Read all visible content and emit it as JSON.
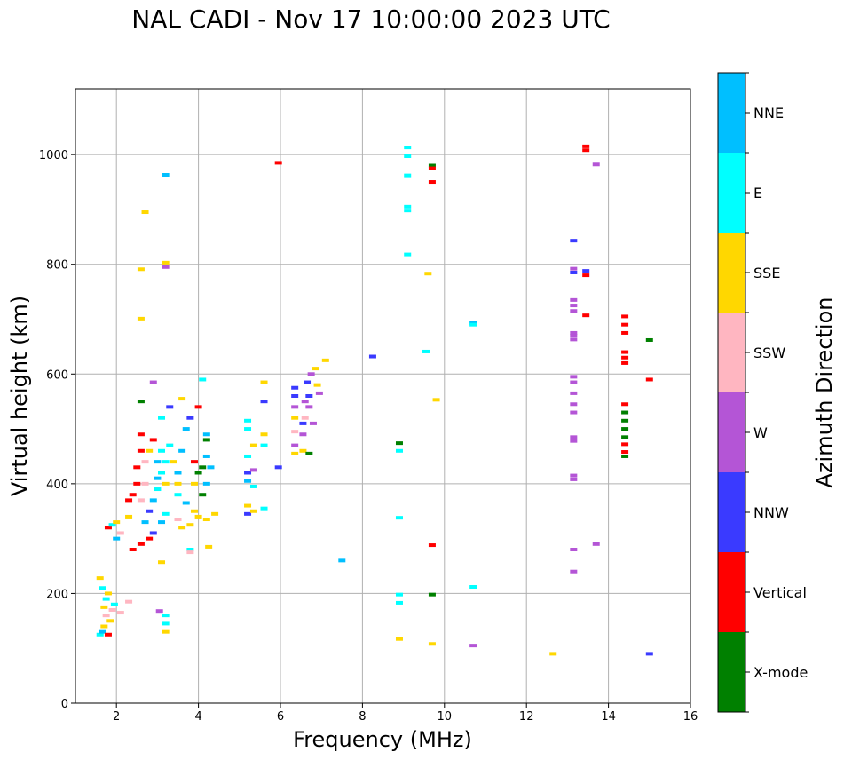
{
  "chart_data": {
    "type": "scatter",
    "title": "NAL CADI - Nov 17 10:00:00 2023 UTC",
    "xlabel": "Frequency (MHz)",
    "ylabel": "Virtual height (km)",
    "xlim": [
      1,
      16
    ],
    "ylim": [
      0,
      1120
    ],
    "xticks": [
      2,
      4,
      6,
      8,
      10,
      12,
      14,
      16
    ],
    "yticks": [
      0,
      200,
      400,
      600,
      800,
      1000
    ],
    "grid": true,
    "colorbar": {
      "label": "Azimuth Direction",
      "categories": [
        {
          "name": "X-mode",
          "color": "#008000"
        },
        {
          "name": "Vertical",
          "color": "#ff0000"
        },
        {
          "name": "NNW",
          "color": "#3a3aff"
        },
        {
          "name": "W",
          "color": "#b455d6"
        },
        {
          "name": "SSW",
          "color": "#ffb6c1"
        },
        {
          "name": "SSE",
          "color": "#ffd700"
        },
        {
          "name": "E",
          "color": "#00ffff"
        },
        {
          "name": "NNE",
          "color": "#00bfff"
        }
      ]
    },
    "points": [
      {
        "x": 1.6,
        "y": 125,
        "c": "E"
      },
      {
        "x": 1.65,
        "y": 130,
        "c": "NNE"
      },
      {
        "x": 1.7,
        "y": 140,
        "c": "SSE"
      },
      {
        "x": 1.75,
        "y": 160,
        "c": "SSW"
      },
      {
        "x": 1.7,
        "y": 175,
        "c": "SSE"
      },
      {
        "x": 1.75,
        "y": 190,
        "c": "E"
      },
      {
        "x": 1.8,
        "y": 200,
        "c": "SSE"
      },
      {
        "x": 1.65,
        "y": 210,
        "c": "E"
      },
      {
        "x": 1.8,
        "y": 125,
        "c": "Vertical"
      },
      {
        "x": 1.85,
        "y": 150,
        "c": "SSE"
      },
      {
        "x": 1.9,
        "y": 170,
        "c": "SSW"
      },
      {
        "x": 2.1,
        "y": 165,
        "c": "SSW"
      },
      {
        "x": 2.3,
        "y": 185,
        "c": "SSW"
      },
      {
        "x": 1.6,
        "y": 228,
        "c": "SSE"
      },
      {
        "x": 1.95,
        "y": 180,
        "c": "E"
      },
      {
        "x": 1.8,
        "y": 320,
        "c": "Vertical"
      },
      {
        "x": 1.9,
        "y": 325,
        "c": "E"
      },
      {
        "x": 2.0,
        "y": 330,
        "c": "SSE"
      },
      {
        "x": 2.0,
        "y": 300,
        "c": "NNE"
      },
      {
        "x": 2.1,
        "y": 310,
        "c": "SSW"
      },
      {
        "x": 2.3,
        "y": 340,
        "c": "SSE"
      },
      {
        "x": 2.3,
        "y": 370,
        "c": "Vertical"
      },
      {
        "x": 2.4,
        "y": 380,
        "c": "Vertical"
      },
      {
        "x": 2.5,
        "y": 400,
        "c": "Vertical"
      },
      {
        "x": 2.5,
        "y": 430,
        "c": "Vertical"
      },
      {
        "x": 2.6,
        "y": 460,
        "c": "Vertical"
      },
      {
        "x": 2.6,
        "y": 490,
        "c": "Vertical"
      },
      {
        "x": 2.4,
        "y": 280,
        "c": "Vertical"
      },
      {
        "x": 2.6,
        "y": 290,
        "c": "Vertical"
      },
      {
        "x": 2.8,
        "y": 300,
        "c": "Vertical"
      },
      {
        "x": 2.9,
        "y": 310,
        "c": "NNW"
      },
      {
        "x": 2.7,
        "y": 330,
        "c": "NNE"
      },
      {
        "x": 2.8,
        "y": 350,
        "c": "NNW"
      },
      {
        "x": 2.9,
        "y": 370,
        "c": "NNE"
      },
      {
        "x": 3.0,
        "y": 390,
        "c": "E"
      },
      {
        "x": 3.0,
        "y": 410,
        "c": "NNE"
      },
      {
        "x": 3.1,
        "y": 420,
        "c": "E"
      },
      {
        "x": 3.2,
        "y": 400,
        "c": "SSE"
      },
      {
        "x": 3.1,
        "y": 330,
        "c": "NNE"
      },
      {
        "x": 3.2,
        "y": 345,
        "c": "E"
      },
      {
        "x": 2.6,
        "y": 370,
        "c": "SSW"
      },
      {
        "x": 2.7,
        "y": 400,
        "c": "SSW"
      },
      {
        "x": 2.7,
        "y": 440,
        "c": "SSW"
      },
      {
        "x": 2.8,
        "y": 460,
        "c": "SSE"
      },
      {
        "x": 2.9,
        "y": 480,
        "c": "Vertical"
      },
      {
        "x": 3.0,
        "y": 440,
        "c": "NNE"
      },
      {
        "x": 3.1,
        "y": 460,
        "c": "E"
      },
      {
        "x": 3.3,
        "y": 470,
        "c": "E"
      },
      {
        "x": 3.4,
        "y": 440,
        "c": "SSE"
      },
      {
        "x": 3.5,
        "y": 420,
        "c": "NNE"
      },
      {
        "x": 3.5,
        "y": 380,
        "c": "E"
      },
      {
        "x": 3.6,
        "y": 460,
        "c": "NNE"
      },
      {
        "x": 3.7,
        "y": 500,
        "c": "NNE"
      },
      {
        "x": 3.8,
        "y": 520,
        "c": "NNW"
      },
      {
        "x": 3.9,
        "y": 440,
        "c": "Vertical"
      },
      {
        "x": 3.9,
        "y": 400,
        "c": "SSE"
      },
      {
        "x": 4.0,
        "y": 420,
        "c": "X-mode"
      },
      {
        "x": 4.1,
        "y": 430,
        "c": "X-mode"
      },
      {
        "x": 4.2,
        "y": 400,
        "c": "NNE"
      },
      {
        "x": 4.2,
        "y": 450,
        "c": "NNE"
      },
      {
        "x": 4.2,
        "y": 490,
        "c": "NNE"
      },
      {
        "x": 4.0,
        "y": 540,
        "c": "Vertical"
      },
      {
        "x": 4.2,
        "y": 480,
        "c": "X-mode"
      },
      {
        "x": 4.1,
        "y": 380,
        "c": "X-mode"
      },
      {
        "x": 4.3,
        "y": 430,
        "c": "NNE"
      },
      {
        "x": 4.0,
        "y": 340,
        "c": "SSE"
      },
      {
        "x": 4.2,
        "y": 335,
        "c": "SSE"
      },
      {
        "x": 4.4,
        "y": 345,
        "c": "SSE"
      },
      {
        "x": 3.6,
        "y": 320,
        "c": "SSE"
      },
      {
        "x": 3.8,
        "y": 325,
        "c": "SSE"
      },
      {
        "x": 3.5,
        "y": 335,
        "c": "SSW"
      },
      {
        "x": 3.9,
        "y": 350,
        "c": "SSE"
      },
      {
        "x": 3.7,
        "y": 365,
        "c": "NNE"
      },
      {
        "x": 3.5,
        "y": 400,
        "c": "SSE"
      },
      {
        "x": 3.2,
        "y": 440,
        "c": "E"
      },
      {
        "x": 3.3,
        "y": 540,
        "c": "NNW"
      },
      {
        "x": 3.6,
        "y": 555,
        "c": "SSE"
      },
      {
        "x": 4.1,
        "y": 590,
        "c": "E"
      },
      {
        "x": 2.9,
        "y": 585,
        "c": "W"
      },
      {
        "x": 2.6,
        "y": 550,
        "c": "X-mode"
      },
      {
        "x": 3.1,
        "y": 520,
        "c": "E"
      },
      {
        "x": 3.8,
        "y": 280,
        "c": "E"
      },
      {
        "x": 3.8,
        "y": 275,
        "c": "SSW"
      },
      {
        "x": 4.25,
        "y": 285,
        "c": "SSE"
      },
      {
        "x": 3.1,
        "y": 257,
        "c": "SSE"
      },
      {
        "x": 3.2,
        "y": 160,
        "c": "E"
      },
      {
        "x": 3.2,
        "y": 145,
        "c": "E"
      },
      {
        "x": 3.2,
        "y": 130,
        "c": "SSE"
      },
      {
        "x": 3.05,
        "y": 168,
        "c": "W"
      },
      {
        "x": 3.2,
        "y": 963,
        "c": "NNE"
      },
      {
        "x": 3.2,
        "y": 803,
        "c": "SSE"
      },
      {
        "x": 3.2,
        "y": 795,
        "c": "W"
      },
      {
        "x": 2.7,
        "y": 895,
        "c": "SSE"
      },
      {
        "x": 2.6,
        "y": 791,
        "c": "SSE"
      },
      {
        "x": 2.6,
        "y": 701,
        "c": "SSE"
      },
      {
        "x": 5.2,
        "y": 360,
        "c": "SSE"
      },
      {
        "x": 5.2,
        "y": 345,
        "c": "NNW"
      },
      {
        "x": 5.35,
        "y": 350,
        "c": "SSE"
      },
      {
        "x": 5.2,
        "y": 420,
        "c": "NNW"
      },
      {
        "x": 5.2,
        "y": 405,
        "c": "NNE"
      },
      {
        "x": 5.35,
        "y": 425,
        "c": "W"
      },
      {
        "x": 5.2,
        "y": 450,
        "c": "E"
      },
      {
        "x": 5.2,
        "y": 500,
        "c": "E"
      },
      {
        "x": 5.2,
        "y": 515,
        "c": "E"
      },
      {
        "x": 5.35,
        "y": 470,
        "c": "SSE"
      },
      {
        "x": 5.6,
        "y": 470,
        "c": "E"
      },
      {
        "x": 5.6,
        "y": 490,
        "c": "SSE"
      },
      {
        "x": 5.6,
        "y": 550,
        "c": "NNW"
      },
      {
        "x": 5.6,
        "y": 585,
        "c": "SSE"
      },
      {
        "x": 5.6,
        "y": 355,
        "c": "E"
      },
      {
        "x": 5.35,
        "y": 395,
        "c": "E"
      },
      {
        "x": 5.95,
        "y": 430,
        "c": "NNW"
      },
      {
        "x": 5.95,
        "y": 985,
        "c": "Vertical"
      },
      {
        "x": 6.35,
        "y": 455,
        "c": "SSE"
      },
      {
        "x": 6.35,
        "y": 470,
        "c": "W"
      },
      {
        "x": 6.35,
        "y": 520,
        "c": "SSE"
      },
      {
        "x": 6.35,
        "y": 540,
        "c": "W"
      },
      {
        "x": 6.35,
        "y": 560,
        "c": "NNW"
      },
      {
        "x": 6.35,
        "y": 575,
        "c": "NNW"
      },
      {
        "x": 6.55,
        "y": 460,
        "c": "SSE"
      },
      {
        "x": 6.55,
        "y": 490,
        "c": "W"
      },
      {
        "x": 6.6,
        "y": 520,
        "c": "SSW"
      },
      {
        "x": 6.6,
        "y": 550,
        "c": "W"
      },
      {
        "x": 6.65,
        "y": 585,
        "c": "NNW"
      },
      {
        "x": 6.75,
        "y": 600,
        "c": "W"
      },
      {
        "x": 6.7,
        "y": 560,
        "c": "NNW"
      },
      {
        "x": 6.7,
        "y": 540,
        "c": "W"
      },
      {
        "x": 6.8,
        "y": 510,
        "c": "W"
      },
      {
        "x": 6.7,
        "y": 455,
        "c": "X-mode"
      },
      {
        "x": 6.9,
        "y": 580,
        "c": "SSE"
      },
      {
        "x": 6.95,
        "y": 565,
        "c": "W"
      },
      {
        "x": 6.85,
        "y": 610,
        "c": "SSE"
      },
      {
        "x": 7.1,
        "y": 625,
        "c": "SSE"
      },
      {
        "x": 6.55,
        "y": 510,
        "c": "NNW"
      },
      {
        "x": 6.35,
        "y": 495,
        "c": "SSW"
      },
      {
        "x": 7.5,
        "y": 260,
        "c": "NNE"
      },
      {
        "x": 8.25,
        "y": 632,
        "c": "NNW"
      },
      {
        "x": 9.1,
        "y": 1013,
        "c": "E"
      },
      {
        "x": 9.1,
        "y": 997,
        "c": "E"
      },
      {
        "x": 9.1,
        "y": 962,
        "c": "E"
      },
      {
        "x": 9.1,
        "y": 905,
        "c": "E"
      },
      {
        "x": 9.1,
        "y": 898,
        "c": "E"
      },
      {
        "x": 9.1,
        "y": 818,
        "c": "E"
      },
      {
        "x": 8.9,
        "y": 474,
        "c": "X-mode"
      },
      {
        "x": 8.9,
        "y": 460,
        "c": "E"
      },
      {
        "x": 8.9,
        "y": 338,
        "c": "E"
      },
      {
        "x": 8.9,
        "y": 198,
        "c": "E"
      },
      {
        "x": 8.9,
        "y": 183,
        "c": "E"
      },
      {
        "x": 8.9,
        "y": 117,
        "c": "SSE"
      },
      {
        "x": 9.6,
        "y": 783,
        "c": "SSE"
      },
      {
        "x": 9.55,
        "y": 641,
        "c": "E"
      },
      {
        "x": 9.8,
        "y": 553,
        "c": "SSE"
      },
      {
        "x": 9.7,
        "y": 980,
        "c": "X-mode"
      },
      {
        "x": 9.7,
        "y": 975,
        "c": "Vertical"
      },
      {
        "x": 9.7,
        "y": 950,
        "c": "Vertical"
      },
      {
        "x": 9.7,
        "y": 288,
        "c": "Vertical"
      },
      {
        "x": 9.7,
        "y": 198,
        "c": "X-mode"
      },
      {
        "x": 9.7,
        "y": 108,
        "c": "SSE"
      },
      {
        "x": 10.7,
        "y": 693,
        "c": "NNE"
      },
      {
        "x": 10.7,
        "y": 690,
        "c": "E"
      },
      {
        "x": 10.7,
        "y": 212,
        "c": "E"
      },
      {
        "x": 10.7,
        "y": 105,
        "c": "W"
      },
      {
        "x": 12.65,
        "y": 90,
        "c": "SSE"
      },
      {
        "x": 13.15,
        "y": 843,
        "c": "NNW"
      },
      {
        "x": 13.15,
        "y": 792,
        "c": "W"
      },
      {
        "x": 13.15,
        "y": 785,
        "c": "NNW"
      },
      {
        "x": 13.15,
        "y": 735,
        "c": "W"
      },
      {
        "x": 13.15,
        "y": 725,
        "c": "W"
      },
      {
        "x": 13.15,
        "y": 715,
        "c": "W"
      },
      {
        "x": 13.15,
        "y": 675,
        "c": "W"
      },
      {
        "x": 13.15,
        "y": 670,
        "c": "W"
      },
      {
        "x": 13.15,
        "y": 663,
        "c": "W"
      },
      {
        "x": 13.15,
        "y": 595,
        "c": "W"
      },
      {
        "x": 13.15,
        "y": 585,
        "c": "W"
      },
      {
        "x": 13.15,
        "y": 565,
        "c": "W"
      },
      {
        "x": 13.15,
        "y": 545,
        "c": "W"
      },
      {
        "x": 13.15,
        "y": 530,
        "c": "W"
      },
      {
        "x": 13.15,
        "y": 485,
        "c": "W"
      },
      {
        "x": 13.15,
        "y": 478,
        "c": "W"
      },
      {
        "x": 13.15,
        "y": 415,
        "c": "W"
      },
      {
        "x": 13.15,
        "y": 408,
        "c": "W"
      },
      {
        "x": 13.15,
        "y": 280,
        "c": "W"
      },
      {
        "x": 13.15,
        "y": 240,
        "c": "W"
      },
      {
        "x": 13.45,
        "y": 1015,
        "c": "Vertical"
      },
      {
        "x": 13.45,
        "y": 1008,
        "c": "Vertical"
      },
      {
        "x": 13.7,
        "y": 982,
        "c": "W"
      },
      {
        "x": 13.45,
        "y": 788,
        "c": "NNW"
      },
      {
        "x": 13.45,
        "y": 780,
        "c": "Vertical"
      },
      {
        "x": 13.45,
        "y": 707,
        "c": "Vertical"
      },
      {
        "x": 13.7,
        "y": 290,
        "c": "W"
      },
      {
        "x": 14.4,
        "y": 705,
        "c": "Vertical"
      },
      {
        "x": 14.4,
        "y": 690,
        "c": "Vertical"
      },
      {
        "x": 14.4,
        "y": 675,
        "c": "Vertical"
      },
      {
        "x": 14.4,
        "y": 640,
        "c": "Vertical"
      },
      {
        "x": 14.4,
        "y": 630,
        "c": "Vertical"
      },
      {
        "x": 14.4,
        "y": 620,
        "c": "Vertical"
      },
      {
        "x": 14.4,
        "y": 545,
        "c": "Vertical"
      },
      {
        "x": 14.4,
        "y": 530,
        "c": "X-mode"
      },
      {
        "x": 14.4,
        "y": 515,
        "c": "X-mode"
      },
      {
        "x": 14.4,
        "y": 500,
        "c": "X-mode"
      },
      {
        "x": 14.4,
        "y": 485,
        "c": "X-mode"
      },
      {
        "x": 14.4,
        "y": 472,
        "c": "Vertical"
      },
      {
        "x": 14.4,
        "y": 458,
        "c": "Vertical"
      },
      {
        "x": 14.4,
        "y": 450,
        "c": "X-mode"
      },
      {
        "x": 15.0,
        "y": 662,
        "c": "X-mode"
      },
      {
        "x": 15.0,
        "y": 590,
        "c": "Vertical"
      },
      {
        "x": 15.0,
        "y": 90,
        "c": "NNW"
      }
    ]
  }
}
